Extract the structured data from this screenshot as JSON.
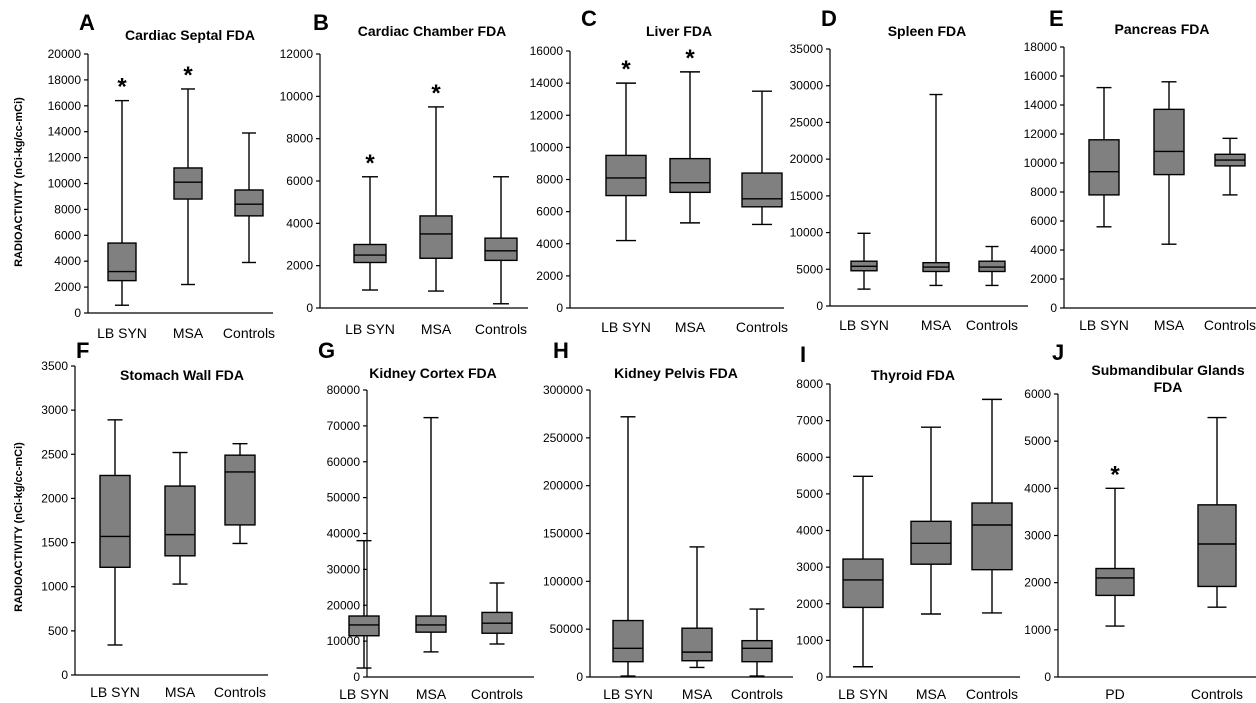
{
  "y_axis_label": "RADIOACTIVITY (nCi-kg/cc-mCi)",
  "chart_data": [
    {
      "type": "box",
      "letter": "A",
      "title": "Cardiac Septal FDA",
      "categories": [
        "LB SYN",
        "MSA",
        "Controls"
      ],
      "ylim": [
        0,
        20000
      ],
      "yticks": [
        "0",
        "2000",
        "4000",
        "6000",
        "8000",
        "10000",
        "12000",
        "14000",
        "16000",
        "18000",
        "20000"
      ],
      "boxes": [
        {
          "min": 600,
          "q1": 2500,
          "median": 3200,
          "q3": 5400,
          "max": 16400,
          "star": "*"
        },
        {
          "min": 2200,
          "q1": 8800,
          "median": 10100,
          "q3": 11200,
          "max": 17300,
          "star": "*"
        },
        {
          "min": 3900,
          "q1": 7500,
          "median": 8400,
          "q3": 9500,
          "max": 13900,
          "star": ""
        }
      ]
    },
    {
      "type": "box",
      "letter": "B",
      "title": "Cardiac Chamber FDA",
      "categories": [
        "LB SYN",
        "MSA",
        "Controls"
      ],
      "ylim": [
        0,
        12000
      ],
      "yticks": [
        "0",
        "2000",
        "4000",
        "6000",
        "8000",
        "10000",
        "12000"
      ],
      "boxes": [
        {
          "min": 850,
          "q1": 2150,
          "median": 2500,
          "q3": 3000,
          "max": 6200,
          "star": "*"
        },
        {
          "min": 800,
          "q1": 2350,
          "median": 3500,
          "q3": 4350,
          "max": 9500,
          "star": "*"
        },
        {
          "min": 200,
          "q1": 2250,
          "median": 2700,
          "q3": 3300,
          "max": 6200,
          "star": ""
        }
      ]
    },
    {
      "type": "box",
      "letter": "C",
      "title": "Liver FDA",
      "categories": [
        "LB SYN",
        "MSA",
        "Controls"
      ],
      "ylim": [
        0,
        16000
      ],
      "yticks": [
        "0",
        "2000",
        "4000",
        "6000",
        "8000",
        "10000",
        "12000",
        "14000",
        "16000"
      ],
      "boxes": [
        {
          "min": 4200,
          "q1": 7000,
          "median": 8100,
          "q3": 9500,
          "max": 14000,
          "star": "*"
        },
        {
          "min": 5300,
          "q1": 7200,
          "median": 7800,
          "q3": 9300,
          "max": 14700,
          "star": "*"
        },
        {
          "min": 5200,
          "q1": 6300,
          "median": 6800,
          "q3": 8400,
          "max": 13500,
          "star": ""
        }
      ]
    },
    {
      "type": "box",
      "letter": "D",
      "title": "Spleen FDA",
      "categories": [
        "LB SYN",
        "MSA",
        "Controls"
      ],
      "ylim": [
        0,
        35000
      ],
      "yticks": [
        "0",
        "5000",
        "10000",
        "15000",
        "20000",
        "25000",
        "30000",
        "35000"
      ],
      "boxes": [
        {
          "min": 2300,
          "q1": 4800,
          "median": 5400,
          "q3": 6100,
          "max": 9900,
          "star": ""
        },
        {
          "min": 2800,
          "q1": 4700,
          "median": 5300,
          "q3": 5900,
          "max": 28800,
          "star": ""
        },
        {
          "min": 2800,
          "q1": 4700,
          "median": 5300,
          "q3": 6100,
          "max": 8100,
          "star": ""
        }
      ]
    },
    {
      "type": "box",
      "letter": "E",
      "title": "Pancreas FDA",
      "categories": [
        "LB SYN",
        "MSA",
        "Controls"
      ],
      "ylim": [
        0,
        18000
      ],
      "yticks": [
        "0",
        "2000",
        "4000",
        "6000",
        "8000",
        "10000",
        "12000",
        "14000",
        "16000",
        "18000"
      ],
      "boxes": [
        {
          "min": 5600,
          "q1": 7800,
          "median": 9400,
          "q3": 11600,
          "max": 15200,
          "star": ""
        },
        {
          "min": 4400,
          "q1": 9200,
          "median": 10800,
          "q3": 13700,
          "max": 15600,
          "star": ""
        },
        {
          "min": 7800,
          "q1": 9800,
          "median": 10200,
          "q3": 10600,
          "max": 11700,
          "star": ""
        }
      ]
    },
    {
      "type": "box",
      "letter": "F",
      "title": "Stomach Wall FDA",
      "categories": [
        "LB SYN",
        "MSA",
        "Controls"
      ],
      "ylim": [
        0,
        3500
      ],
      "yticks": [
        "0",
        "500",
        "1000",
        "1500",
        "2000",
        "2500",
        "3000",
        "3500"
      ],
      "boxes": [
        {
          "min": 340,
          "q1": 1220,
          "median": 1570,
          "q3": 2260,
          "max": 2890,
          "star": ""
        },
        {
          "min": 1030,
          "q1": 1350,
          "median": 1590,
          "q3": 2140,
          "max": 2520,
          "star": ""
        },
        {
          "min": 1490,
          "q1": 1700,
          "median": 2300,
          "q3": 2490,
          "max": 2620,
          "star": ""
        }
      ]
    },
    {
      "type": "box",
      "letter": "G",
      "title": "Kidney Cortex FDA",
      "categories": [
        "LB SYN",
        "MSA",
        "Controls"
      ],
      "ylim": [
        0,
        80000
      ],
      "yticks": [
        "0",
        "10000",
        "20000",
        "30000",
        "40000",
        "50000",
        "60000",
        "70000",
        "80000"
      ],
      "boxes": [
        {
          "min": 2500,
          "q1": 11500,
          "median": 14500,
          "q3": 17000,
          "max": 38000,
          "star": ""
        },
        {
          "min": 7000,
          "q1": 12500,
          "median": 14500,
          "q3": 17000,
          "max": 72300,
          "star": ""
        },
        {
          "min": 9200,
          "q1": 12200,
          "median": 15000,
          "q3": 18000,
          "max": 26200,
          "star": ""
        }
      ]
    },
    {
      "type": "box",
      "letter": "H",
      "title": "Kidney Pelvis FDA",
      "categories": [
        "LB SYN",
        "MSA",
        "Controls"
      ],
      "ylim": [
        0,
        300000
      ],
      "yticks": [
        "0",
        "50000",
        "100000",
        "150000",
        "200000",
        "250000",
        "300000"
      ],
      "boxes": [
        {
          "min": 1000,
          "q1": 16000,
          "median": 30000,
          "q3": 59000,
          "max": 272000,
          "star": ""
        },
        {
          "min": 10000,
          "q1": 17000,
          "median": 26000,
          "q3": 51000,
          "max": 136000,
          "star": ""
        },
        {
          "min": 1000,
          "q1": 16000,
          "median": 30000,
          "q3": 38000,
          "max": 71000,
          "star": ""
        }
      ]
    },
    {
      "type": "box",
      "letter": "I",
      "title": "Thyroid FDA",
      "categories": [
        "LB SYN",
        "MSA",
        "Controls"
      ],
      "ylim": [
        0,
        8000
      ],
      "yticks": [
        "0",
        "1000",
        "2000",
        "3000",
        "4000",
        "5000",
        "6000",
        "7000",
        "8000"
      ],
      "boxes": [
        {
          "min": 280,
          "q1": 1900,
          "median": 2650,
          "q3": 3220,
          "max": 5480,
          "star": ""
        },
        {
          "min": 1720,
          "q1": 3080,
          "median": 3650,
          "q3": 4250,
          "max": 6820,
          "star": ""
        },
        {
          "min": 1750,
          "q1": 2930,
          "median": 4150,
          "q3": 4750,
          "max": 7580,
          "star": ""
        }
      ]
    },
    {
      "type": "box",
      "letter": "J",
      "title": "Submandibular Glands FDA",
      "categories": [
        "PD",
        "Controls"
      ],
      "ylim": [
        0,
        6000
      ],
      "yticks": [
        "0",
        "1000",
        "2000",
        "3000",
        "4000",
        "5000",
        "6000"
      ],
      "boxes": [
        {
          "min": 1080,
          "q1": 1730,
          "median": 2100,
          "q3": 2300,
          "max": 4000,
          "star": "*"
        },
        {
          "min": 1480,
          "q1": 1920,
          "median": 2820,
          "q3": 3650,
          "max": 5500,
          "star": ""
        }
      ]
    }
  ]
}
